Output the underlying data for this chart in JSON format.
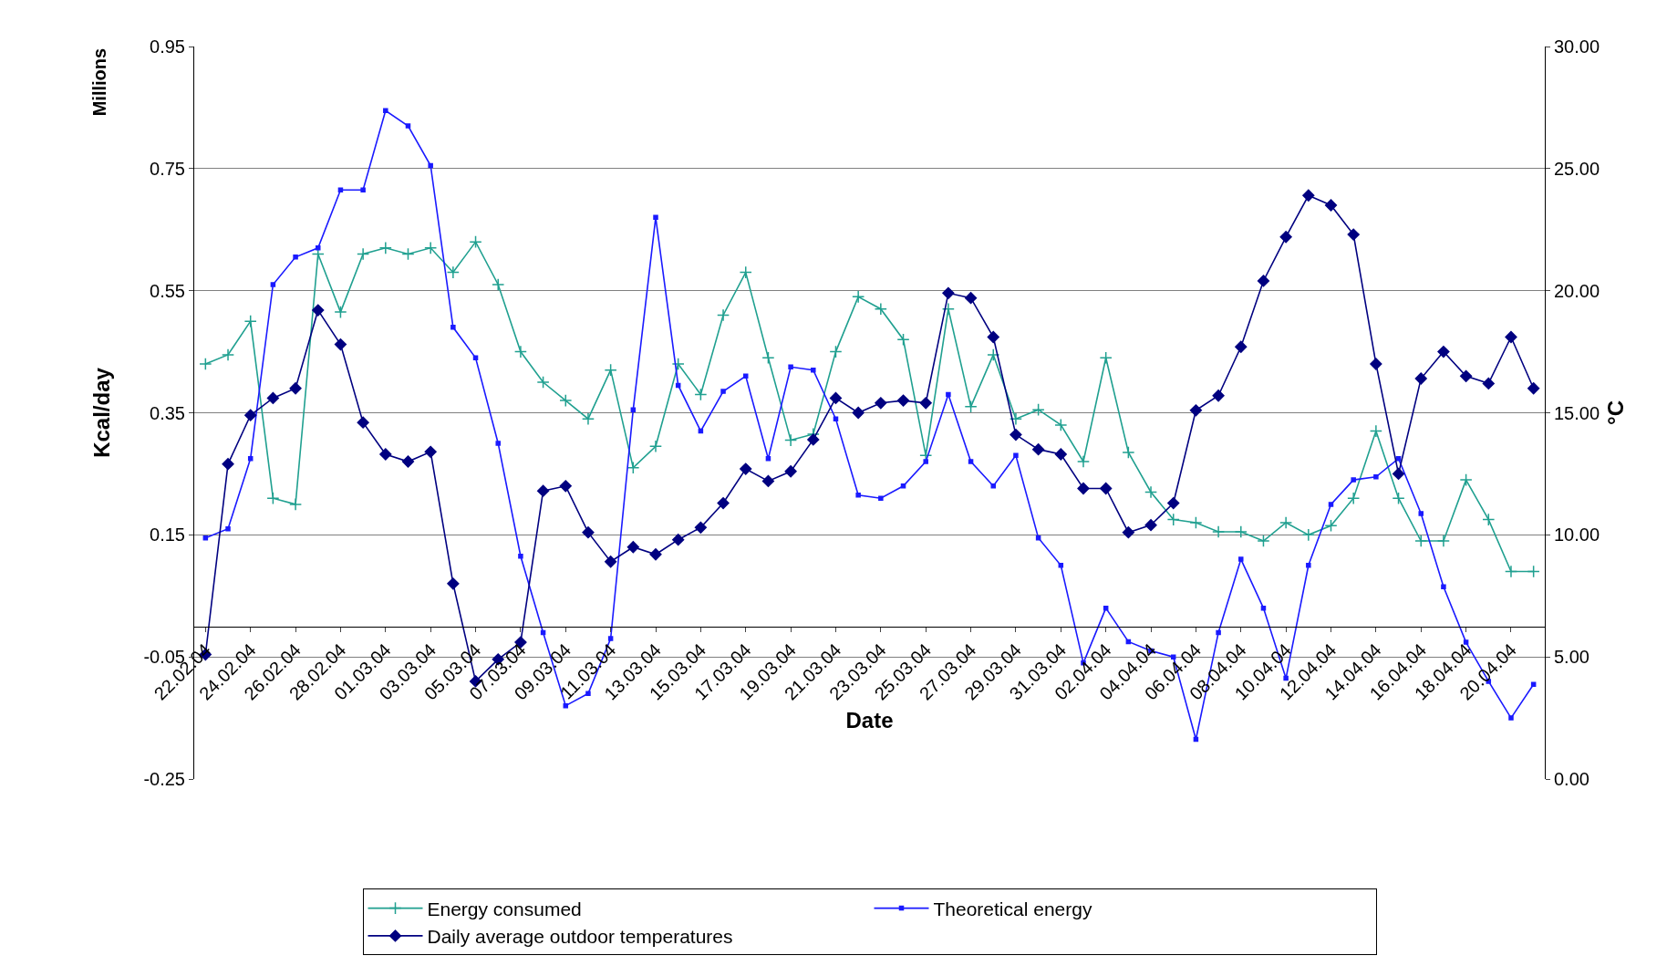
{
  "chart_data": {
    "type": "line",
    "xlabel": "Date",
    "ylabel": "Kcal/day",
    "y2label": "°C",
    "annotations": [
      "Millions"
    ],
    "categories": [
      "22.02.04",
      null,
      "24.02.04",
      null,
      "26.02.04",
      null,
      "28.02.04",
      null,
      "01.03.04",
      null,
      "03.03.04",
      null,
      "05.03.04",
      null,
      "07.03.04",
      null,
      "09.03.04",
      null,
      "11.03.04",
      null,
      "13.03.04",
      null,
      "15.03.04",
      null,
      "17.03.04",
      null,
      "19.03.04",
      null,
      "21.03.04",
      null,
      "23.03.04",
      null,
      "25.03.04",
      null,
      "27.03.04",
      null,
      "29.03.04",
      null,
      "31.03.04",
      null,
      "02.04.04",
      null,
      "04.04.04",
      null,
      "06.04.04",
      null,
      "08.04.04",
      null,
      "10.04.04",
      null,
      "12.04.04",
      null,
      "14.04.04",
      null,
      "16.04.04",
      null,
      "18.04.04",
      null,
      "20.04.04",
      null
    ],
    "series": [
      {
        "name": "Energy consumed",
        "color": "#20a090",
        "marker": "cross",
        "values": [
          0.43,
          0.445,
          0.5,
          0.21,
          0.2,
          0.61,
          0.515,
          0.61,
          0.62,
          0.61,
          0.62,
          0.58,
          0.63,
          0.56,
          0.45,
          0.4,
          0.37,
          0.34,
          0.42,
          0.26,
          0.295,
          0.43,
          0.38,
          0.51,
          0.58,
          0.44,
          0.305,
          0.315,
          0.45,
          0.54,
          0.52,
          0.47,
          0.28,
          0.52,
          0.36,
          0.445,
          0.34,
          0.355,
          0.33,
          0.27,
          0.44,
          0.285,
          0.22,
          0.175,
          0.17,
          0.155,
          0.155,
          0.14,
          0.17,
          0.15,
          0.165,
          0.21,
          0.32,
          0.21,
          0.14,
          0.14,
          0.24,
          0.175,
          0.09,
          0.09
        ]
      },
      {
        "name": "Theoretical energy",
        "color": "#1a1aff",
        "marker": "square",
        "values": [
          0.145,
          0.16,
          0.275,
          0.56,
          0.605,
          0.62,
          0.715,
          0.715,
          0.845,
          0.82,
          0.755,
          0.49,
          0.44,
          0.3,
          0.115,
          -0.01,
          -0.13,
          -0.11,
          -0.02,
          0.355,
          0.67,
          0.395,
          0.32,
          0.385,
          0.41,
          0.275,
          0.425,
          0.42,
          0.34,
          0.215,
          0.21,
          0.23,
          0.27,
          0.38,
          0.27,
          0.23,
          0.28,
          0.145,
          0.1,
          -0.06,
          0.03,
          -0.025,
          -0.04,
          -0.05,
          -0.185,
          -0.01,
          0.11,
          0.03,
          -0.085,
          0.1,
          0.2,
          0.24,
          0.245,
          0.275,
          0.185,
          0.065,
          -0.026,
          -0.09,
          -0.15,
          -0.095
        ]
      },
      {
        "name": "Daily average outdoor temperatures",
        "color": "#000080",
        "marker": "diamond",
        "axis": "y2",
        "values": [
          5.1,
          12.9,
          14.9,
          15.6,
          16.0,
          19.2,
          17.8,
          14.6,
          13.3,
          13.0,
          13.4,
          8.0,
          4.0,
          4.9,
          5.6,
          11.8,
          12.0,
          10.1,
          8.9,
          9.5,
          9.2,
          9.8,
          10.3,
          11.3,
          12.7,
          12.2,
          12.6,
          13.9,
          15.6,
          15.0,
          15.4,
          15.5,
          15.4,
          19.9,
          19.7,
          18.1,
          14.1,
          13.5,
          13.3,
          11.9,
          11.9,
          10.1,
          10.4,
          11.3,
          15.1,
          15.7,
          17.7,
          20.4,
          22.2,
          23.9,
          23.5,
          22.3,
          17.0,
          12.5,
          16.4,
          17.5,
          16.5,
          16.2,
          18.1,
          16.0
        ]
      }
    ],
    "ylim": [
      -0.25,
      0.95
    ],
    "yticks": [
      -0.25,
      -0.05,
      0.15,
      0.35,
      0.55,
      0.75,
      0.95
    ],
    "y2lim": [
      0,
      30
    ],
    "y2ticks": [
      {
        "value": 0,
        "label": "0.00"
      },
      {
        "value": 5,
        "label": "5.00"
      },
      {
        "value": 10,
        "label": "10.00"
      },
      {
        "value": 15,
        "label": "15.00"
      },
      {
        "value": 20,
        "label": "20.00"
      },
      {
        "value": 25,
        "label": "25.00"
      },
      {
        "value": 30,
        "label": "30.00"
      }
    ],
    "grid": "y",
    "legend": "bottom",
    "line_style": "solid"
  }
}
